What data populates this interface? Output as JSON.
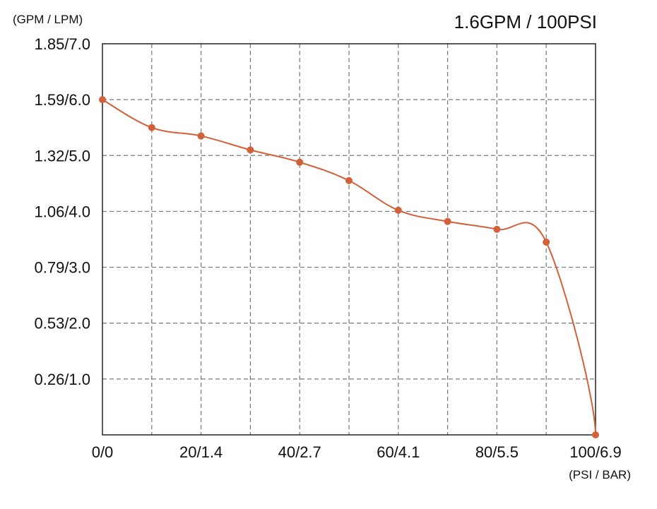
{
  "chart_data": {
    "type": "line",
    "title": "1.6GPM / 100PSI",
    "ylabel": "(GPM / LPM)",
    "xlabel": "(PSI / BAR)",
    "xlim": [
      0,
      100
    ],
    "ylim": [
      0,
      7.0
    ],
    "grid": true,
    "x_ticks": [
      {
        "value": 0,
        "label": "0/0"
      },
      {
        "value": 20,
        "label": "20/1.4"
      },
      {
        "value": 40,
        "label": "40/2.7"
      },
      {
        "value": 60,
        "label": "60/4.1"
      },
      {
        "value": 80,
        "label": "80/5.5"
      },
      {
        "value": 100,
        "label": "100/6.9"
      }
    ],
    "x_gridlines": [
      10,
      20,
      30,
      40,
      50,
      60,
      70,
      80,
      90
    ],
    "y_ticks": [
      {
        "value": 7.0,
        "label": "1.85/7.0"
      },
      {
        "value": 6.0,
        "label": "1.59/6.0"
      },
      {
        "value": 5.0,
        "label": "1.32/5.0"
      },
      {
        "value": 4.0,
        "label": "1.06/4.0"
      },
      {
        "value": 3.0,
        "label": "0.79/3.0"
      },
      {
        "value": 2.0,
        "label": "0.53/2.0"
      },
      {
        "value": 1.0,
        "label": "0.26/1.0"
      }
    ],
    "y_gridlines": [
      1,
      2,
      3,
      4,
      5,
      6
    ],
    "series": [
      {
        "color": "#d2603a",
        "x": [
          0,
          10,
          20,
          30,
          40,
          50,
          60,
          70,
          80,
          90,
          100
        ],
        "y": [
          6.0,
          5.5,
          5.35,
          5.1,
          4.88,
          4.55,
          4.02,
          3.82,
          3.68,
          3.45,
          0.0
        ]
      }
    ]
  }
}
